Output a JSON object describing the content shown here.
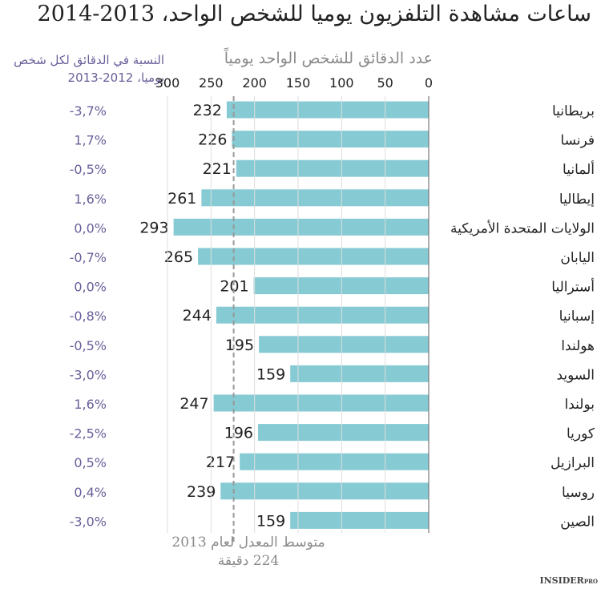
{
  "chart_data": {
    "type": "bar",
    "orientation": "horizontal",
    "title": "ساعات مشاهدة التلفزيون يوميا للشخص الواحد، 2013-2014",
    "xlabel": "عدد الدقائق للشخص الواحد يومياً",
    "secondary_label_line1": "النسبة في الدقائق لكل شخص",
    "secondary_label_line2": "يوميا، 2012-2013",
    "xlim": [
      0,
      300
    ],
    "x_direction": "right-to-left",
    "ticks": [
      "0",
      "50",
      "100",
      "150",
      "200",
      "250",
      "300"
    ],
    "grid": true,
    "categories": [
      "بريطانيا",
      "فرنسا",
      "ألمانيا",
      "إيطاليا",
      "الولايات المتحدة الأمريكية",
      "اليابان",
      "أستراليا",
      "إسبانيا",
      "هولندا",
      "السويد",
      "بولندا",
      "كوريا",
      "البرازيل",
      "روسيا",
      "الصين"
    ],
    "values": [
      232,
      226,
      221,
      261,
      293,
      265,
      201,
      244,
      195,
      159,
      247,
      196,
      217,
      239,
      159
    ],
    "value_labels": [
      "232",
      "226",
      "221",
      "261",
      "293",
      "265",
      "201",
      "244",
      "195",
      "159",
      "247",
      "196",
      "217",
      "239",
      "159"
    ],
    "change_labels": [
      "-3,7%",
      "1,7%",
      "-0,5%",
      "1,6%",
      "0,0%",
      "-0,7%",
      "0,0%",
      "-0,8%",
      "-0,5%",
      "-3,0%",
      "1,6%",
      "-2,5%",
      "0,5%",
      "0,4%",
      "-3,0%"
    ],
    "reference_line": {
      "value": 224,
      "label_line1": "متوسط المعدل لعام 2013",
      "label_line2": "224 دقيقة"
    },
    "colors": {
      "bar": "#86cad3",
      "change_text": "#6a5f9a",
      "value_text": "#222222",
      "reference": "#999999"
    }
  },
  "brand": "INSIDER PRO"
}
